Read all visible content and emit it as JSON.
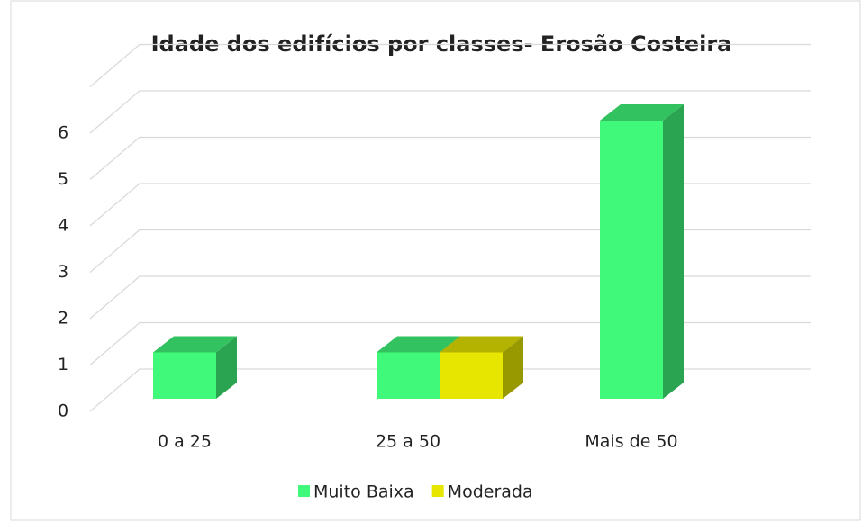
{
  "chart_data": {
    "type": "bar3d",
    "title": "Idade dos edifícios por classes- Erosão Costeira",
    "categories": [
      "0 a 25",
      "25 a 50",
      "Mais de 50"
    ],
    "series": [
      {
        "name": "Muito Baixa",
        "color": "#40f97a",
        "values": [
          1,
          1,
          6
        ]
      },
      {
        "name": "Moderada",
        "color": "#e6e600",
        "values": [
          0,
          1,
          0
        ]
      }
    ],
    "ylim": [
      0,
      7
    ],
    "yticks": [
      0,
      1,
      2,
      3,
      4,
      5,
      6
    ],
    "grid": true,
    "legend": "bottom"
  }
}
